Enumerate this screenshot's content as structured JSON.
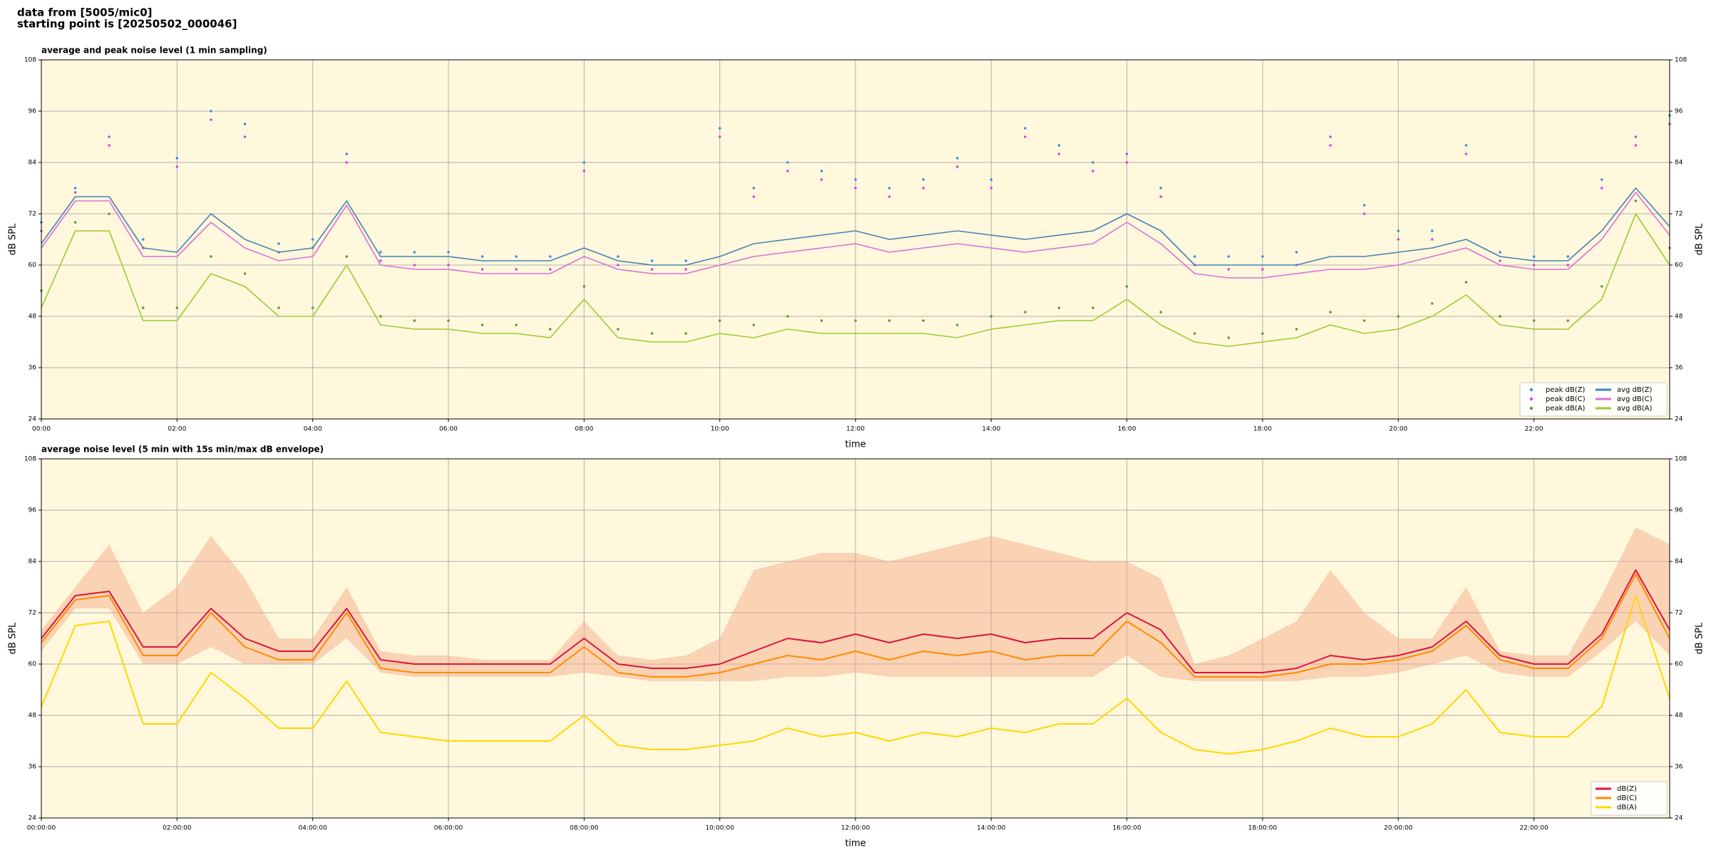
{
  "header": {
    "line1": "data from [5005/mic0]",
    "line2": "starting point is [20250502_000046]"
  },
  "chart_data": [
    {
      "type": "line",
      "title": "average and peak noise level (1 min sampling)",
      "x_label": "time",
      "y_label": "dB SPL",
      "x": [
        0,
        0.5,
        1,
        1.5,
        2,
        2.5,
        3,
        3.5,
        4,
        4.5,
        5,
        5.5,
        6,
        6.5,
        7,
        7.5,
        8,
        8.5,
        9,
        9.5,
        10,
        10.5,
        11,
        11.5,
        12,
        12.5,
        13,
        13.5,
        14,
        14.5,
        15,
        15.5,
        16,
        16.5,
        17,
        17.5,
        18,
        18.5,
        19,
        19.5,
        20,
        20.5,
        21,
        21.5,
        22,
        22.5,
        23,
        23.5,
        24
      ],
      "xlim": [
        0,
        24
      ],
      "xticks": [
        {
          "value": 0,
          "label": "00:00"
        },
        {
          "value": 2,
          "label": "02:00"
        },
        {
          "value": 4,
          "label": "04:00"
        },
        {
          "value": 6,
          "label": "06:00"
        },
        {
          "value": 8,
          "label": "08:00"
        },
        {
          "value": 10,
          "label": "10:00"
        },
        {
          "value": 12,
          "label": "12:00"
        },
        {
          "value": 14,
          "label": "14:00"
        },
        {
          "value": 16,
          "label": "16:00"
        },
        {
          "value": 18,
          "label": "18:00"
        },
        {
          "value": 20,
          "label": "20:00"
        },
        {
          "value": 22,
          "label": "22:00"
        }
      ],
      "ylim": [
        24,
        108
      ],
      "yticks": [
        24,
        36,
        48,
        60,
        72,
        84,
        96,
        108
      ],
      "grid": true,
      "legend": "lower right",
      "legend_ncol": 2,
      "background": "#fff8dc",
      "series": [
        {
          "name": "peak dB(Z)",
          "kind": "scatter",
          "color": "#3a8ee6",
          "values": [
            70,
            78,
            90,
            66,
            85,
            96,
            93,
            65,
            66,
            86,
            63,
            63,
            63,
            62,
            62,
            62,
            84,
            62,
            61,
            61,
            92,
            78,
            84,
            82,
            80,
            78,
            80,
            85,
            80,
            92,
            88,
            84,
            86,
            78,
            62,
            62,
            62,
            63,
            90,
            74,
            68,
            68,
            88,
            63,
            62,
            62,
            80,
            90,
            95
          ]
        },
        {
          "name": "peak dB(C)",
          "kind": "scatter",
          "color": "#e040e0",
          "values": [
            68,
            77,
            88,
            64,
            83,
            94,
            90,
            63,
            64,
            84,
            61,
            60,
            60,
            59,
            59,
            59,
            82,
            60,
            59,
            59,
            90,
            76,
            82,
            80,
            78,
            76,
            78,
            83,
            78,
            90,
            86,
            82,
            84,
            76,
            60,
            59,
            59,
            60,
            88,
            72,
            66,
            66,
            86,
            61,
            60,
            60,
            78,
            88,
            93
          ]
        },
        {
          "name": "peak dB(A)",
          "kind": "scatter",
          "color": "#5a9a3a",
          "values": [
            54,
            70,
            72,
            50,
            50,
            62,
            58,
            50,
            50,
            62,
            48,
            47,
            47,
            46,
            46,
            45,
            55,
            45,
            44,
            44,
            47,
            46,
            48,
            47,
            47,
            47,
            47,
            46,
            48,
            49,
            50,
            50,
            55,
            49,
            44,
            43,
            44,
            45,
            49,
            47,
            48,
            51,
            56,
            48,
            47,
            47,
            55,
            75,
            64
          ]
        },
        {
          "name": "avg dB(Z)",
          "kind": "line",
          "color": "#4682b4",
          "values": [
            65,
            76,
            76,
            64,
            63,
            72,
            66,
            63,
            64,
            75,
            62,
            62,
            62,
            61,
            61,
            61,
            64,
            61,
            60,
            60,
            62,
            65,
            66,
            67,
            68,
            66,
            67,
            68,
            67,
            66,
            67,
            68,
            72,
            68,
            60,
            60,
            60,
            60,
            62,
            62,
            63,
            64,
            66,
            62,
            61,
            61,
            68,
            78,
            69
          ]
        },
        {
          "name": "avg dB(C)",
          "kind": "line",
          "color": "#da70d6",
          "values": [
            64,
            75,
            75,
            62,
            62,
            70,
            64,
            61,
            62,
            74,
            60,
            59,
            59,
            58,
            58,
            58,
            62,
            59,
            58,
            58,
            60,
            62,
            63,
            64,
            65,
            63,
            64,
            65,
            64,
            63,
            64,
            65,
            70,
            65,
            58,
            57,
            57,
            58,
            59,
            59,
            60,
            62,
            64,
            60,
            59,
            59,
            66,
            77,
            67
          ]
        },
        {
          "name": "avg dB(A)",
          "kind": "line",
          "color": "#9acd32",
          "values": [
            50,
            68,
            68,
            47,
            47,
            58,
            55,
            48,
            48,
            60,
            46,
            45,
            45,
            44,
            44,
            43,
            52,
            43,
            42,
            42,
            44,
            43,
            45,
            44,
            44,
            44,
            44,
            43,
            45,
            46,
            47,
            47,
            52,
            46,
            42,
            41,
            42,
            43,
            46,
            44,
            45,
            48,
            53,
            46,
            45,
            45,
            52,
            72,
            60
          ]
        }
      ]
    },
    {
      "type": "line",
      "title": "average noise level (5 min with 15s min/max dB envelope)",
      "x_label": "time",
      "y_label": "dB SPL",
      "x": [
        0,
        0.5,
        1,
        1.5,
        2,
        2.5,
        3,
        3.5,
        4,
        4.5,
        5,
        5.5,
        6,
        6.5,
        7,
        7.5,
        8,
        8.5,
        9,
        9.5,
        10,
        10.5,
        11,
        11.5,
        12,
        12.5,
        13,
        13.5,
        14,
        14.5,
        15,
        15.5,
        16,
        16.5,
        17,
        17.5,
        18,
        18.5,
        19,
        19.5,
        20,
        20.5,
        21,
        21.5,
        22,
        22.5,
        23,
        23.5,
        24
      ],
      "xlim": [
        0,
        24
      ],
      "xticks": [
        {
          "value": 0,
          "label": "00:00:00"
        },
        {
          "value": 2,
          "label": "02:00:00"
        },
        {
          "value": 4,
          "label": "04:00:00"
        },
        {
          "value": 6,
          "label": "06:00:00"
        },
        {
          "value": 8,
          "label": "08:00:00"
        },
        {
          "value": 10,
          "label": "10:00:00"
        },
        {
          "value": 12,
          "label": "12:00:00"
        },
        {
          "value": 14,
          "label": "14:00:00"
        },
        {
          "value": 16,
          "label": "16:00:00"
        },
        {
          "value": 18,
          "label": "18:00:00"
        },
        {
          "value": 20,
          "label": "20:00:00"
        },
        {
          "value": 22,
          "label": "22:00:00"
        }
      ],
      "ylim": [
        24,
        108
      ],
      "yticks": [
        24,
        36,
        48,
        60,
        72,
        84,
        96,
        108
      ],
      "grid": true,
      "legend": "lower right",
      "legend_ncol": 1,
      "background": "#fff8dc",
      "envelope_color": "#f4a582",
      "envelope_max": [
        68,
        78,
        88,
        72,
        78,
        90,
        80,
        66,
        66,
        78,
        63,
        62,
        62,
        61,
        61,
        61,
        70,
        62,
        61,
        62,
        66,
        82,
        84,
        86,
        86,
        84,
        86,
        88,
        90,
        88,
        86,
        84,
        84,
        80,
        60,
        62,
        66,
        70,
        82,
        72,
        66,
        66,
        78,
        63,
        62,
        62,
        76,
        92,
        88
      ],
      "envelope_min": [
        63,
        73,
        73,
        60,
        60,
        64,
        60,
        60,
        60,
        66,
        58,
        57,
        57,
        57,
        57,
        57,
        58,
        57,
        56,
        56,
        56,
        56,
        57,
        57,
        58,
        57,
        57,
        57,
        57,
        57,
        57,
        57,
        62,
        57,
        56,
        56,
        56,
        56,
        57,
        57,
        58,
        60,
        62,
        58,
        57,
        57,
        63,
        70,
        62
      ],
      "series": [
        {
          "name": "dB(Z)",
          "kind": "line",
          "color": "#dc143c",
          "values": [
            66,
            76,
            77,
            64,
            64,
            73,
            66,
            63,
            63,
            73,
            61,
            60,
            60,
            60,
            60,
            60,
            66,
            60,
            59,
            59,
            60,
            63,
            66,
            65,
            67,
            65,
            67,
            66,
            67,
            65,
            66,
            66,
            72,
            68,
            58,
            58,
            58,
            59,
            62,
            61,
            62,
            64,
            70,
            62,
            60,
            60,
            67,
            82,
            68
          ]
        },
        {
          "name": "dB(C)",
          "kind": "line",
          "color": "#ff8c00",
          "values": [
            65,
            75,
            76,
            62,
            62,
            72,
            64,
            61,
            61,
            72,
            59,
            58,
            58,
            58,
            58,
            58,
            64,
            58,
            57,
            57,
            58,
            60,
            62,
            61,
            63,
            61,
            63,
            62,
            63,
            61,
            62,
            62,
            70,
            65,
            57,
            57,
            57,
            58,
            60,
            60,
            61,
            63,
            69,
            61,
            59,
            59,
            66,
            81,
            66
          ]
        },
        {
          "name": "dB(A)",
          "kind": "line",
          "color": "#ffd700",
          "values": [
            50,
            69,
            70,
            46,
            46,
            58,
            52,
            45,
            45,
            56,
            44,
            43,
            42,
            42,
            42,
            42,
            48,
            41,
            40,
            40,
            41,
            42,
            45,
            43,
            44,
            42,
            44,
            43,
            45,
            44,
            46,
            46,
            52,
            44,
            40,
            39,
            40,
            42,
            45,
            43,
            43,
            46,
            54,
            44,
            43,
            43,
            50,
            76,
            52
          ]
        }
      ]
    }
  ]
}
